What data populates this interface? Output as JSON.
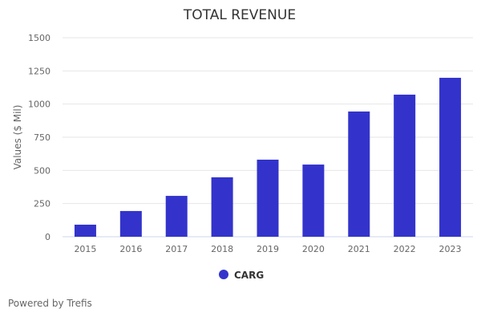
{
  "chart_data": {
    "type": "bar",
    "title": "TOTAL REVENUE",
    "xlabel": "",
    "ylabel": "Values ($ Mil)",
    "categories": [
      "2015",
      "2016",
      "2017",
      "2018",
      "2019",
      "2020",
      "2021",
      "2022",
      "2023"
    ],
    "series": [
      {
        "name": "CARG",
        "values": [
          91,
          194,
          308,
          448,
          581,
          544,
          944,
          1071,
          1198
        ],
        "color": "#3333cc"
      }
    ],
    "ylim": [
      0,
      1500
    ],
    "yticks": [
      0,
      250,
      500,
      750,
      1000,
      1250,
      1500
    ],
    "grid": true,
    "legend": "bottom-center"
  },
  "credit": "Powered by Trefis"
}
